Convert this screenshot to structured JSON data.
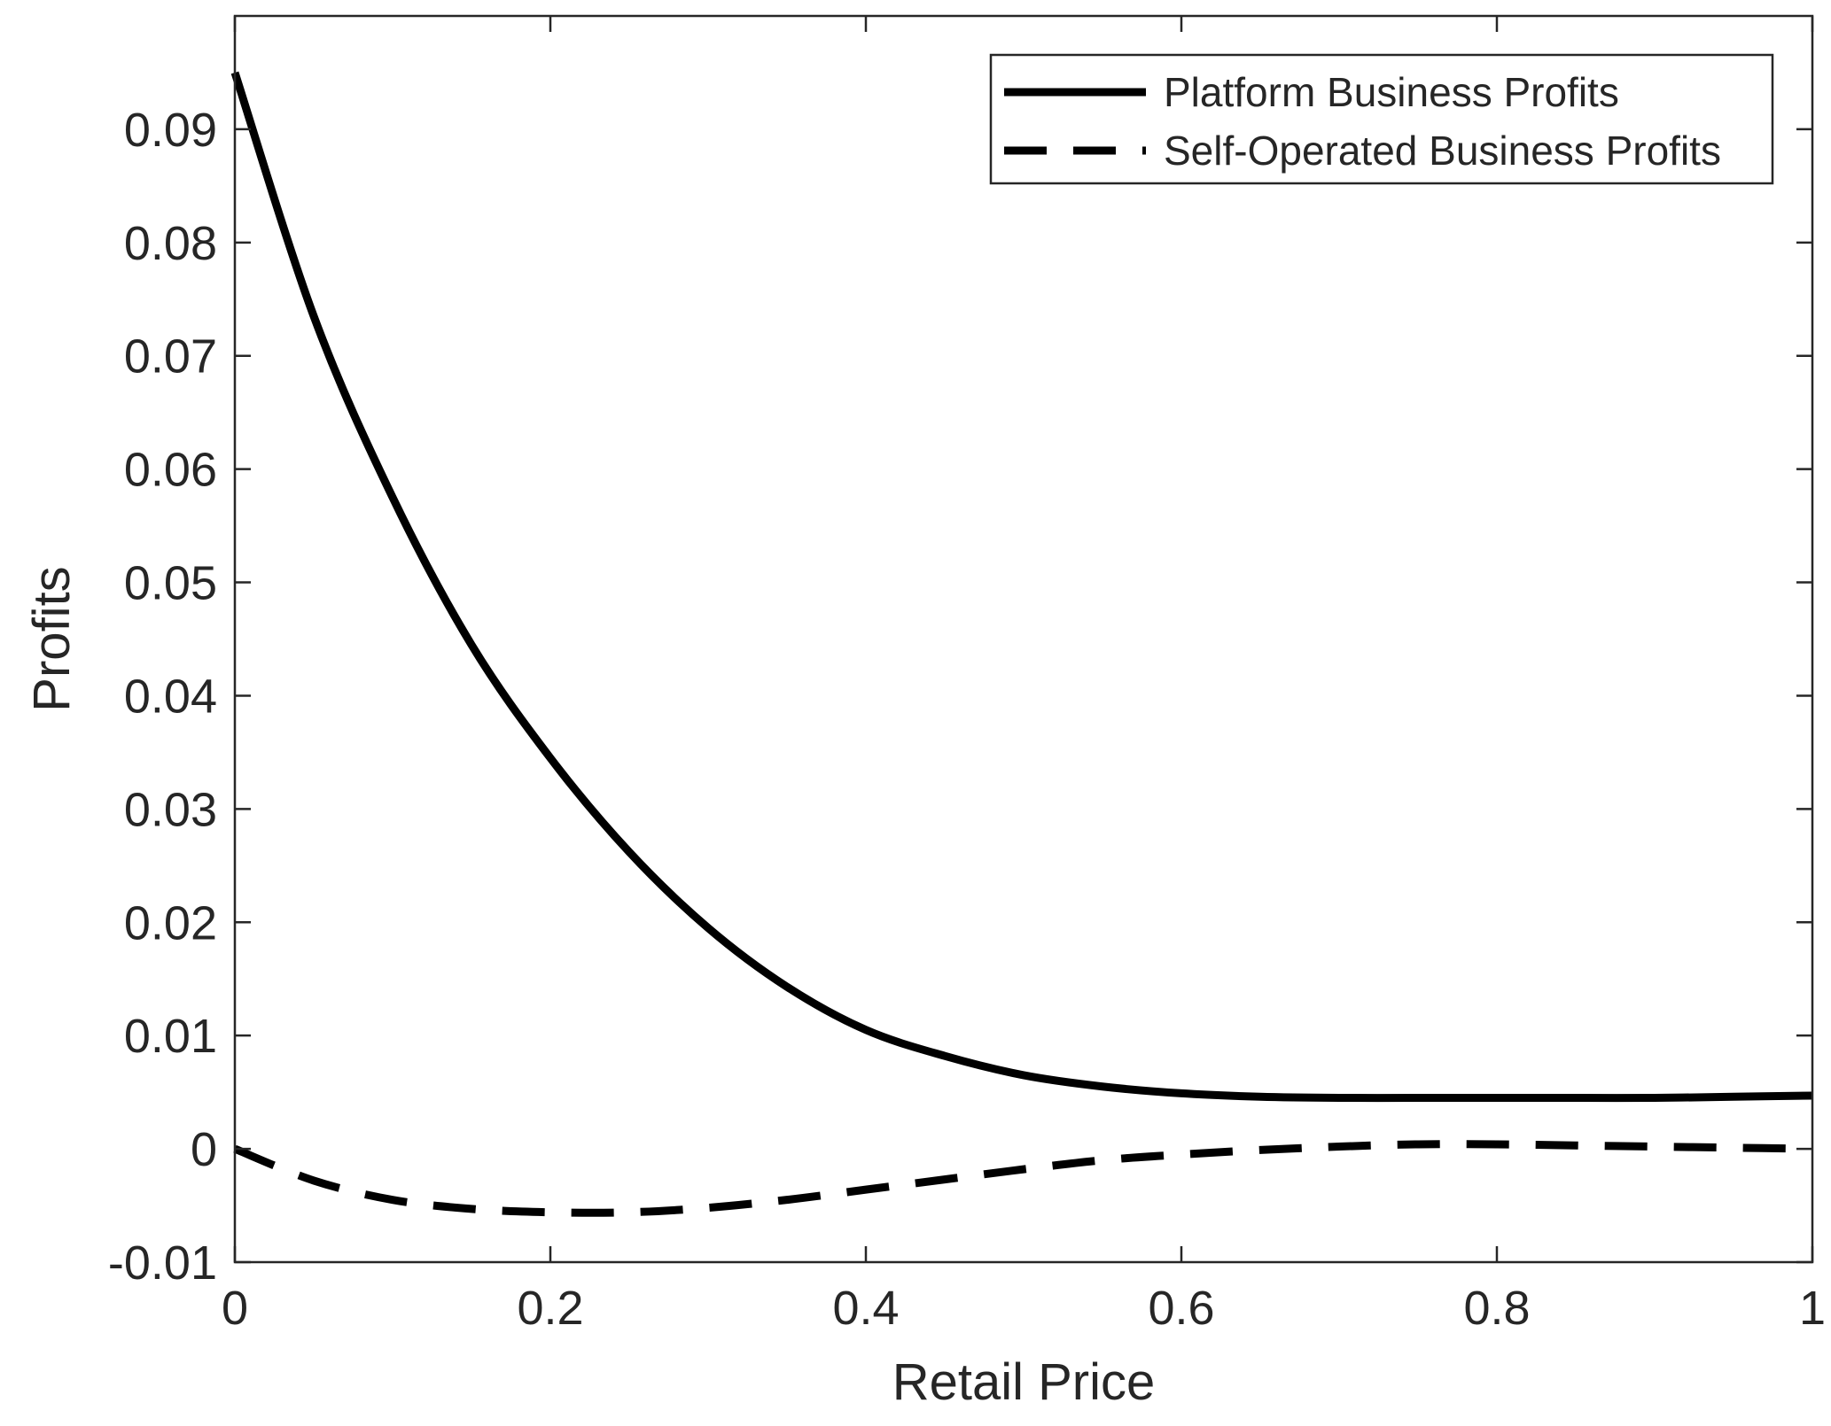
{
  "chart_data": {
    "type": "line",
    "title": "",
    "xlabel": "Retail Price",
    "ylabel": "Profits",
    "xlim": [
      0,
      1
    ],
    "ylim": [
      -0.01,
      0.1
    ],
    "grid": false,
    "legend_position": "top-right",
    "x_ticks": [
      0,
      0.2,
      0.4,
      0.6,
      0.8,
      1
    ],
    "x_tick_labels": [
      "0",
      "0.2",
      "0.4",
      "0.6",
      "0.8",
      "1"
    ],
    "y_ticks": [
      -0.01,
      0,
      0.01,
      0.02,
      0.03,
      0.04,
      0.05,
      0.06,
      0.07,
      0.08,
      0.09
    ],
    "y_tick_labels": [
      "-0.01",
      "0",
      "0.01",
      "0.02",
      "0.03",
      "0.04",
      "0.05",
      "0.06",
      "0.07",
      "0.08",
      "0.09"
    ],
    "x": [
      0,
      0.05,
      0.1,
      0.15,
      0.2,
      0.25,
      0.3,
      0.35,
      0.4,
      0.45,
      0.5,
      0.55,
      0.6,
      0.65,
      0.7,
      0.75,
      0.8,
      0.85,
      0.9,
      0.95,
      1
    ],
    "series": [
      {
        "name": "Platform Business Profits",
        "style": "solid",
        "color": "#000000",
        "values": [
          0.095,
          0.0735,
          0.0575,
          0.0445,
          0.0345,
          0.0262,
          0.0195,
          0.0143,
          0.0105,
          0.0082,
          0.0065,
          0.0055,
          0.0049,
          0.0046,
          0.0045,
          0.0045,
          0.0045,
          0.0045,
          0.0045,
          0.0046,
          0.0047
        ]
      },
      {
        "name": "Self-Operated Business Profits",
        "style": "dashed",
        "color": "#000000",
        "values": [
          0,
          -0.0028,
          -0.0045,
          -0.0053,
          -0.0056,
          -0.0056,
          -0.0052,
          -0.0045,
          -0.0036,
          -0.0027,
          -0.0018,
          -0.001,
          -0.0005,
          -0.0001,
          0.0002,
          0.0004,
          0.0004,
          0.0003,
          0.0002,
          0.0001,
          0
        ]
      }
    ]
  }
}
